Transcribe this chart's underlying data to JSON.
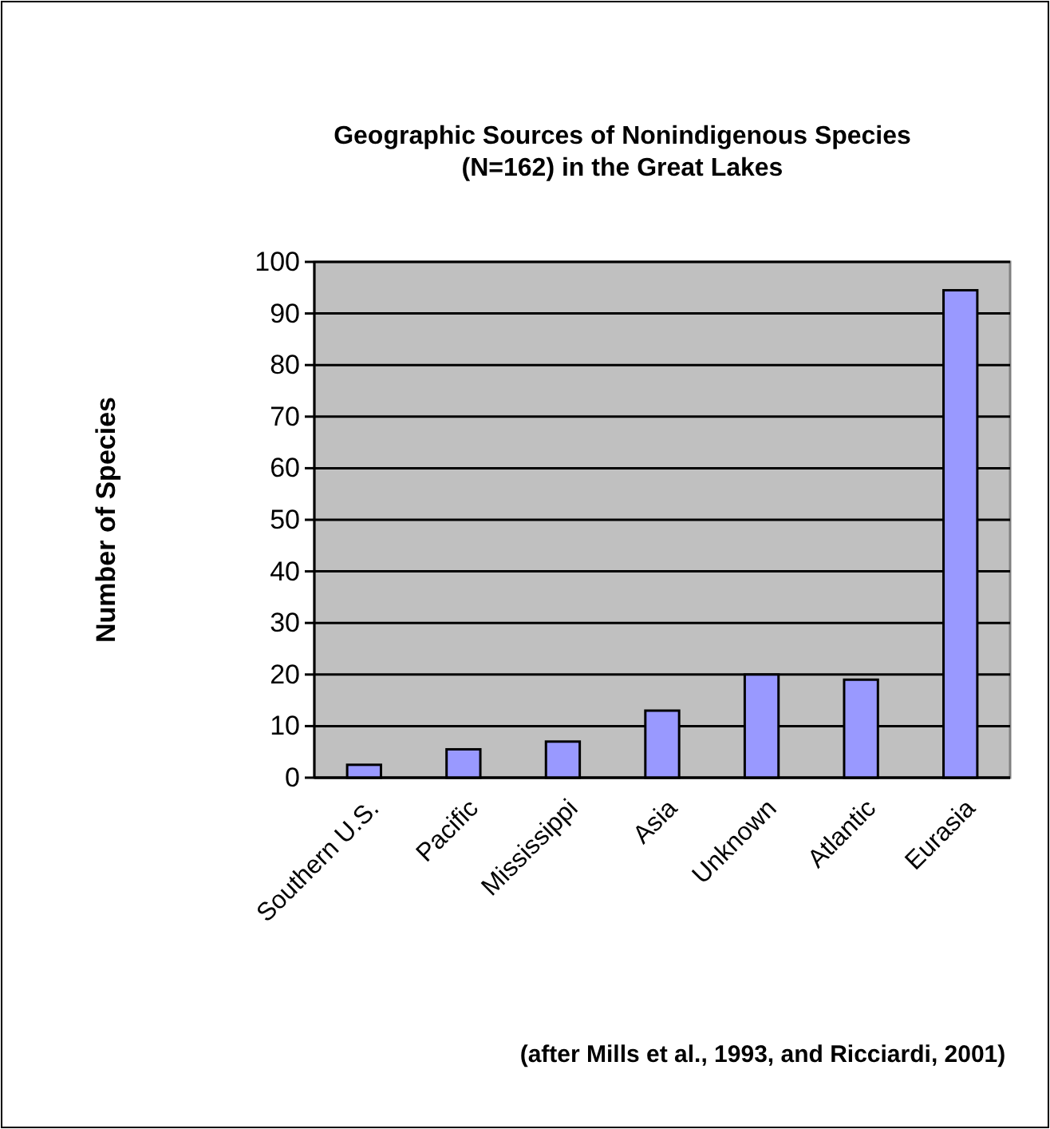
{
  "chart_data": {
    "type": "bar",
    "title": "Geographic Sources of Nonindigenous Species\n(N=162) in the Great Lakes",
    "ylabel": "Number of Species",
    "categories": [
      "Southern U.S.",
      "Pacific",
      "Mississippi",
      "Asia",
      "Unknown",
      "Atlantic",
      "Eurasia"
    ],
    "values": [
      2.5,
      5.5,
      7,
      13,
      20,
      19,
      94.5
    ],
    "color": "#9999ff",
    "ylim": [
      0,
      100
    ],
    "yticks": [
      0,
      10,
      20,
      30,
      40,
      50,
      60,
      70,
      80,
      90,
      100
    ],
    "grid": "y",
    "annotations": [
      "(after Mills et al., 1993, and Ricciardi, 2001)"
    ]
  }
}
